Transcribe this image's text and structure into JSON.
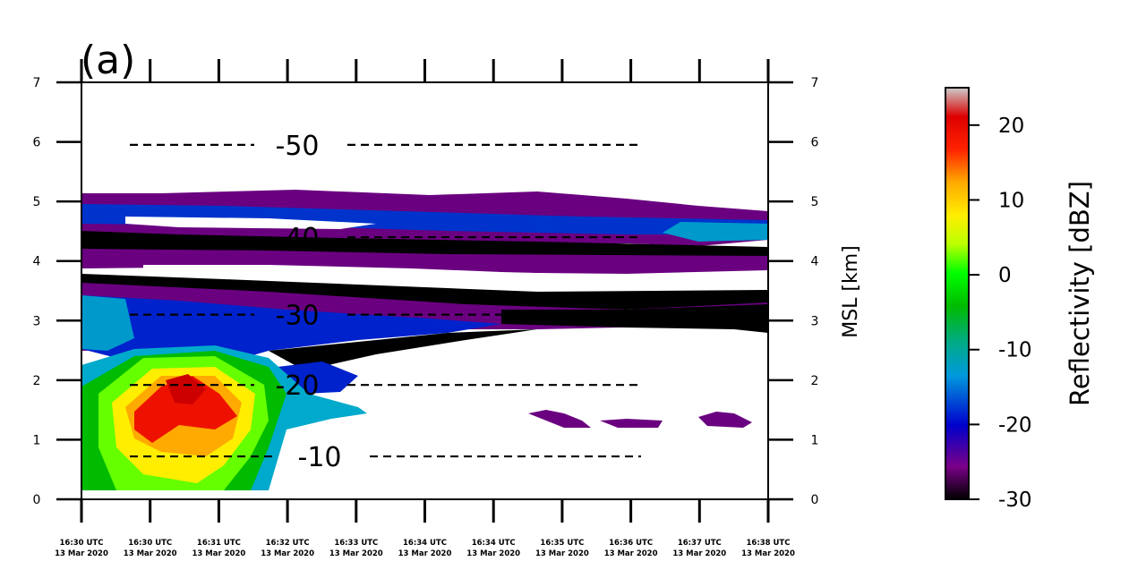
{
  "panel_label": "(a)",
  "chart_data": {
    "type": "heatmap",
    "title": "",
    "xlabel": "",
    "ylabel_right": "MSL [km]",
    "x_tick_labels": [
      [
        "16:30 UTC",
        "13 Mar 2020"
      ],
      [
        "16:30 UTC",
        "13 Mar 2020"
      ],
      [
        "16:31 UTC",
        "13 Mar 2020"
      ],
      [
        "16:32 UTC",
        "13 Mar 2020"
      ],
      [
        "16:33 UTC",
        "13 Mar 2020"
      ],
      [
        "16:34 UTC",
        "13 Mar 2020"
      ],
      [
        "16:34 UTC",
        "13 Mar 2020"
      ],
      [
        "16:35 UTC",
        "13 Mar 2020"
      ],
      [
        "16:36 UTC",
        "13 Mar 2020"
      ],
      [
        "16:37 UTC",
        "13 Mar 2020"
      ],
      [
        "16:38 UTC",
        "13 Mar 2020"
      ]
    ],
    "y_ticks": [
      0,
      1,
      2,
      3,
      4,
      5,
      6,
      7
    ],
    "ylim": [
      0,
      7
    ],
    "grid": false,
    "isotherms": [
      {
        "label": "-50",
        "height_km": 5.95
      },
      {
        "label": "-40",
        "height_km": 4.4
      },
      {
        "label": "-30",
        "height_km": 3.1
      },
      {
        "label": "-20",
        "height_km": 1.92
      },
      {
        "label": "-10",
        "height_km": 0.72
      }
    ],
    "colorbar": {
      "label": "Reflectivity [dBZ]",
      "range": [
        -30,
        25
      ],
      "ticks": [
        -30,
        -20,
        -10,
        0,
        10,
        20
      ],
      "colormap": "nipy_spectral",
      "colors": [
        "#000000",
        "#7a0088",
        "#0000cc",
        "#0099dd",
        "#00aa88",
        "#00bb00",
        "#00ff00",
        "#bbff00",
        "#ffee00",
        "#ffaa00",
        "#ff2200",
        "#dd0000",
        "#cccccc"
      ]
    }
  }
}
